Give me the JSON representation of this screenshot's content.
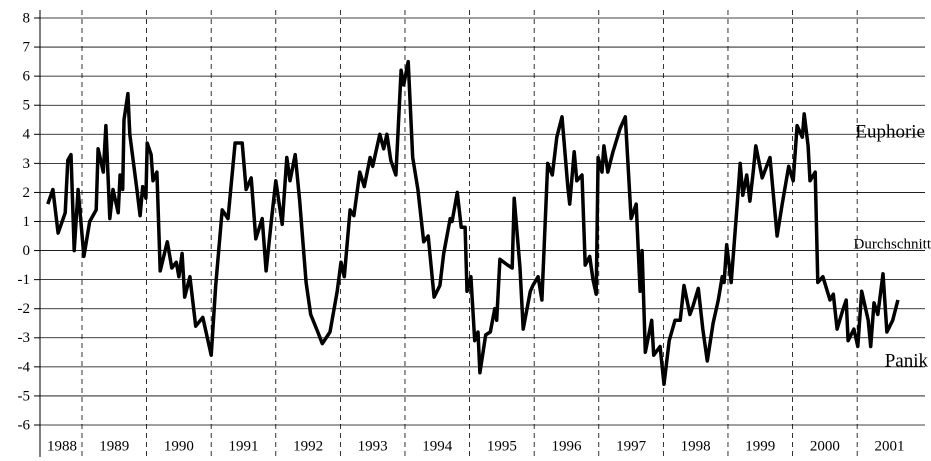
{
  "chart_data": {
    "type": "line",
    "x": [
      1988.47,
      1988.55,
      1988.63,
      1988.74,
      1988.78,
      1988.83,
      1988.88,
      1988.94,
      1989.03,
      1989.12,
      1989.22,
      1989.25,
      1989.33,
      1989.37,
      1989.43,
      1989.48,
      1989.56,
      1989.59,
      1989.63,
      1989.65,
      1989.71,
      1989.74,
      1989.85,
      1989.9,
      1989.94,
      1989.99,
      1990.01,
      1990.07,
      1990.1,
      1990.16,
      1990.21,
      1990.32,
      1990.39,
      1990.46,
      1990.5,
      1990.55,
      1990.59,
      1990.67,
      1990.76,
      1990.87,
      1990.95,
      1991.0,
      1991.07,
      1991.17,
      1991.26,
      1991.37,
      1991.48,
      1991.54,
      1991.62,
      1991.69,
      1991.79,
      1991.85,
      1991.94,
      1992.0,
      1992.1,
      1992.17,
      1992.22,
      1992.3,
      1992.37,
      1992.47,
      1992.54,
      1992.65,
      1992.72,
      1992.84,
      1992.95,
      1993.01,
      1993.06,
      1993.15,
      1993.21,
      1993.3,
      1993.37,
      1993.46,
      1993.5,
      1993.61,
      1993.67,
      1993.72,
      1993.78,
      1993.86,
      1993.94,
      1993.98,
      1994.05,
      1994.12,
      1994.2,
      1994.29,
      1994.36,
      1994.45,
      1994.54,
      1994.6,
      1994.7,
      1994.73,
      1994.81,
      1994.87,
      1994.93,
      1994.96,
      1995.02,
      1995.08,
      1995.13,
      1995.16,
      1995.25,
      1995.32,
      1995.39,
      1995.42,
      1995.47,
      1995.59,
      1995.66,
      1995.69,
      1995.78,
      1995.83,
      1995.94,
      1995.98,
      1996.06,
      1996.12,
      1996.21,
      1996.28,
      1996.35,
      1996.43,
      1996.52,
      1996.55,
      1996.62,
      1996.66,
      1996.74,
      1996.79,
      1996.86,
      1996.91,
      1996.96,
      1996.99,
      1997.05,
      1997.08,
      1997.14,
      1997.22,
      1997.33,
      1997.41,
      1997.5,
      1997.58,
      1997.64,
      1997.67,
      1997.72,
      1997.82,
      1997.85,
      1997.95,
      1998.01,
      1998.09,
      1998.18,
      1998.26,
      1998.32,
      1998.41,
      1998.46,
      1998.54,
      1998.61,
      1998.68,
      1998.77,
      1998.85,
      1998.91,
      1998.94,
      1998.98,
      1999.05,
      1999.14,
      1999.19,
      1999.23,
      1999.29,
      1999.34,
      1999.39,
      1999.43,
      1999.53,
      1999.65,
      1999.76,
      1999.84,
      1999.94,
      2000.01,
      2000.07,
      2000.15,
      2000.18,
      2000.24,
      2000.27,
      2000.35,
      2000.39,
      2000.47,
      2000.58,
      2000.63,
      2000.69,
      2000.77,
      2000.83,
      2000.86,
      2000.95,
      2001.01,
      2001.07,
      2001.17,
      2001.21,
      2001.26,
      2001.32,
      2001.4,
      2001.46,
      2001.55,
      2001.63
    ],
    "series": [
      {
        "color": "#000000",
        "values": [
          1.6,
          2.1,
          0.6,
          1.3,
          3.1,
          3.3,
          0,
          2.1,
          -0.2,
          1.0,
          1.4,
          3.5,
          2.7,
          4.3,
          1.1,
          2.1,
          1.3,
          2.6,
          2.1,
          4.5,
          5.4,
          4.0,
          2.1,
          1.2,
          2.2,
          1.8,
          3.7,
          3.3,
          2.4,
          2.7,
          -0.7,
          0.3,
          -0.6,
          -0.4,
          -0.9,
          -0.1,
          -1.6,
          -0.9,
          -2.6,
          -2.3,
          -3.1,
          -3.6,
          -1.2,
          1.4,
          1.1,
          3.7,
          3.7,
          2.1,
          2.5,
          0.4,
          1.1,
          -0.7,
          1.2,
          2.4,
          0.9,
          3.2,
          2.4,
          3.3,
          1.7,
          -1.1,
          -2.2,
          -2.8,
          -3.2,
          -2.8,
          -1.4,
          -0.4,
          -0.9,
          1.4,
          1.2,
          2.7,
          2.2,
          3.2,
          2.9,
          4.0,
          3.5,
          4.0,
          3.1,
          2.6,
          6.2,
          5.7,
          6.5,
          3.2,
          2.1,
          0.3,
          0.5,
          -1.6,
          -1.2,
          -0.1,
          1.1,
          1.0,
          2.0,
          0.8,
          0.8,
          -1.4,
          -0.9,
          -3.1,
          -2.8,
          -4.2,
          -2.9,
          -2.8,
          -2.0,
          -2.4,
          -0.3,
          -0.5,
          -0.6,
          1.8,
          -0.6,
          -2.7,
          -1.4,
          -1.2,
          -0.9,
          -1.7,
          3.0,
          2.6,
          3.9,
          4.6,
          2.2,
          1.6,
          3.4,
          2.4,
          2.6,
          -0.5,
          -0.2,
          -1.0,
          -1.5,
          3.2,
          2.7,
          3.6,
          2.7,
          3.4,
          4.2,
          4.6,
          1.1,
          1.6,
          -1.4,
          0.0,
          -3.5,
          -2.4,
          -3.6,
          -3.3,
          -4.6,
          -3.1,
          -2.4,
          -2.4,
          -1.2,
          -2.2,
          -1.9,
          -1.3,
          -2.7,
          -3.8,
          -2.5,
          -1.7,
          -0.9,
          -1.1,
          0.2,
          -1.1,
          1.5,
          3.0,
          1.9,
          2.6,
          1.7,
          2.7,
          3.6,
          2.5,
          3.2,
          0.5,
          1.6,
          2.9,
          2.4,
          4.3,
          3.9,
          4.7,
          3.6,
          2.4,
          2.7,
          -1.1,
          -0.9,
          -1.7,
          -1.5,
          -2.7,
          -2.1,
          -1.7,
          -3.1,
          -2.7,
          -3.3,
          -1.4,
          -2.4,
          -3.3,
          -1.8,
          -2.2,
          -0.8,
          -2.8,
          -2.4,
          -1.7
        ]
      }
    ],
    "xlim": [
      1988.35,
      2002.05
    ],
    "xticks": [
      1988,
      1989,
      1990,
      1991,
      1992,
      1993,
      1994,
      1995,
      1996,
      1997,
      1998,
      1999,
      2000,
      2001
    ],
    "ylim": [
      -6,
      8
    ],
    "yticks": [
      -6,
      -5,
      -4,
      -3,
      -2,
      -1,
      0,
      1,
      2,
      3,
      4,
      5,
      6,
      7,
      8
    ],
    "grid": true,
    "annotations": [
      "Euphorie",
      "Durchschnitt",
      "Panik"
    ]
  }
}
